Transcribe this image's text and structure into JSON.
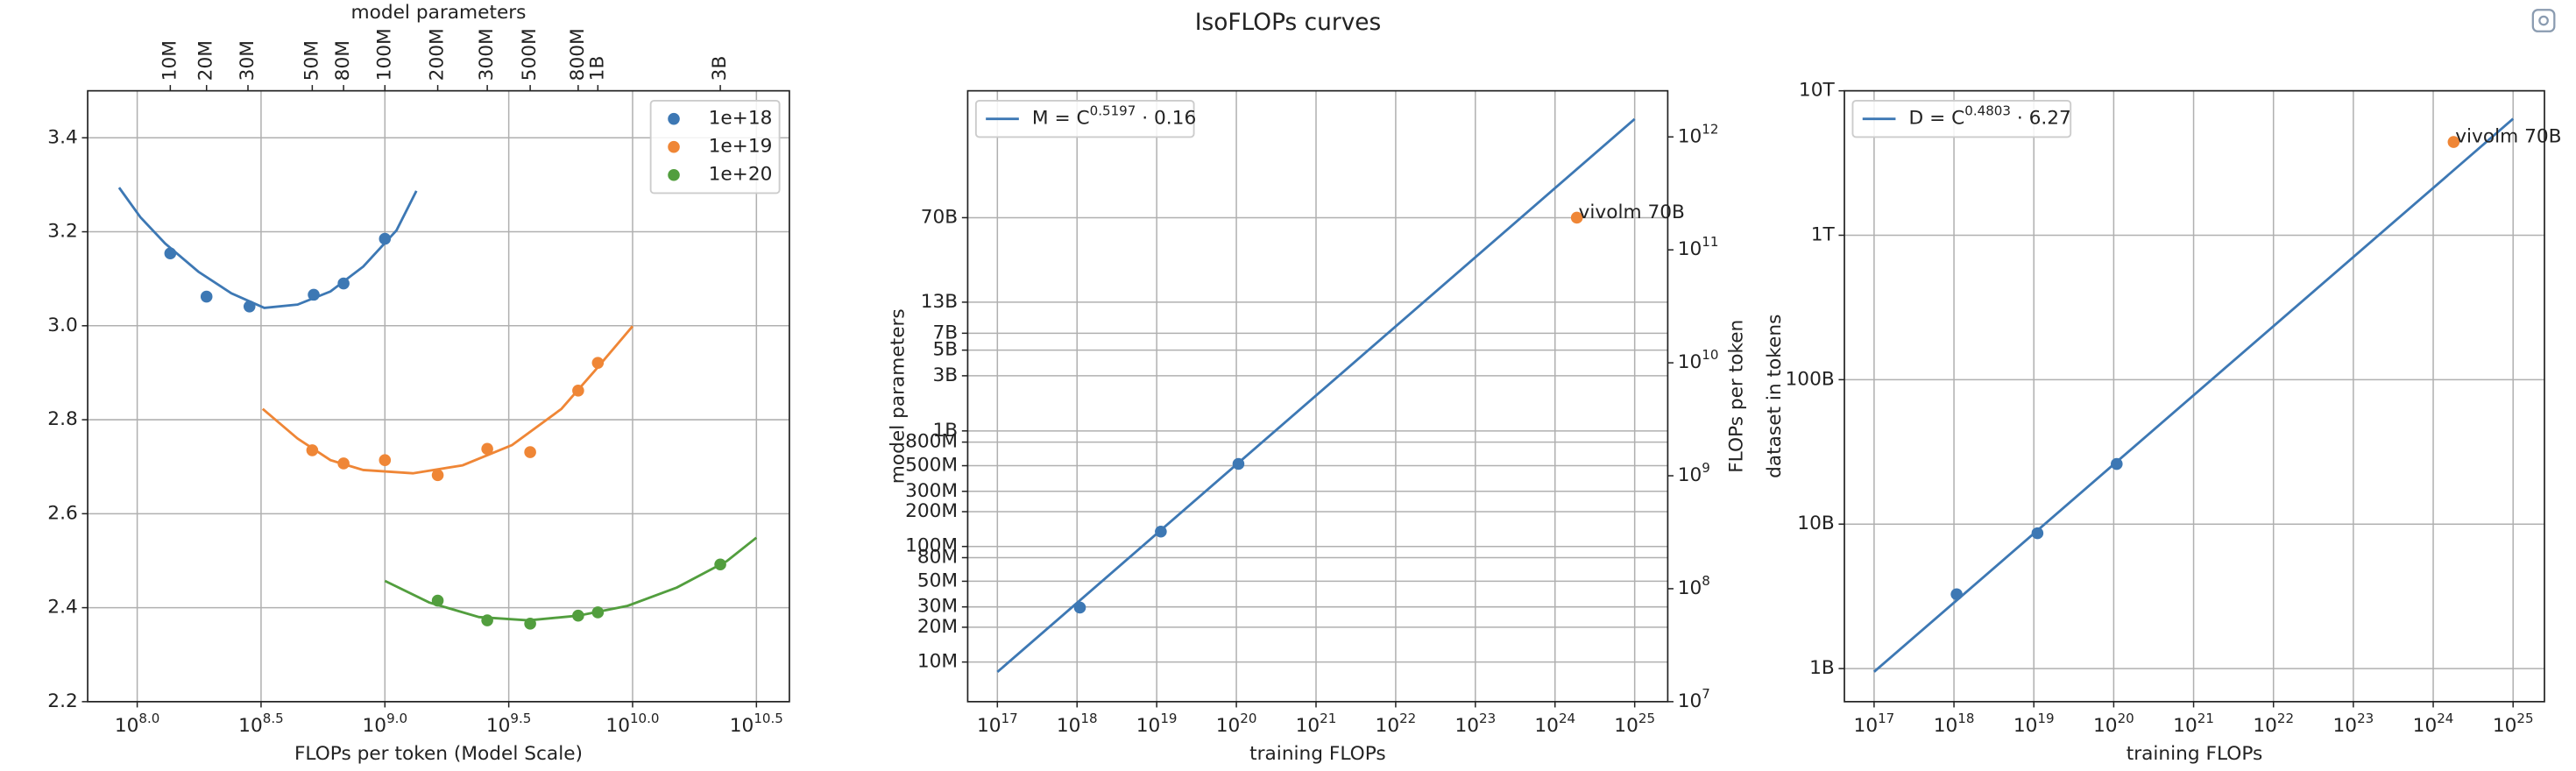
{
  "title": "IsoFLOPs curves",
  "chart_data": [
    {
      "type": "scatter",
      "xlabel": "FLOPs per token (Model Scale)",
      "ylabel": "Loss",
      "x2label": "model parameters",
      "xscale": "log",
      "grid": true,
      "legend": "upper right",
      "xlim": [
        63095734,
        42953642966
      ],
      "ylim": [
        2.2,
        3.5
      ],
      "xticks": [
        {
          "value": 100000000,
          "label": "10^8.0"
        },
        {
          "value": 316227766,
          "label": "10^8.5"
        },
        {
          "value": 1000000000,
          "label": "10^9.0"
        },
        {
          "value": 3162277660,
          "label": "10^9.5"
        },
        {
          "value": 10000000000,
          "label": "10^10.0"
        },
        {
          "value": 31622776602,
          "label": "10^10.5"
        }
      ],
      "yticks": [
        2.2,
        2.4,
        2.6,
        2.8,
        {
          "value": 3,
          "label": "3.0"
        },
        3.2,
        3.4
      ],
      "x2ticks": [
        {
          "value": 136000000,
          "label": "10M"
        },
        {
          "value": 190500000,
          "label": "20M"
        },
        {
          "value": 280000000,
          "label": "30M"
        },
        {
          "value": 509000000,
          "label": "50M"
        },
        {
          "value": 681000000,
          "label": "80M"
        },
        {
          "value": 1000000000,
          "label": "100M"
        },
        {
          "value": 1634000000,
          "label": "200M"
        },
        {
          "value": 2590000000,
          "label": "300M"
        },
        {
          "value": 3860000000,
          "label": "500M"
        },
        {
          "value": 6030000000,
          "label": "800M"
        },
        {
          "value": 7240000000,
          "label": "1B"
        },
        {
          "value": 22600000000,
          "label": "3B"
        }
      ],
      "series": [
        {
          "name": "1e+18",
          "color": "#3d78b4",
          "x": [
            136000000,
            190500000,
            284000000,
            516000000,
            681000000,
            1000000000
          ],
          "values": [
            3.154,
            3.062,
            3.041,
            3.066,
            3.09,
            3.185
          ],
          "fit_x": [
            84500000,
            103000000,
            129700000,
            176600000,
            240000000,
            326000000,
            444000000,
            603000000,
            818000000,
            1114000000,
            1340000000
          ],
          "fit_values": [
            3.294,
            3.231,
            3.175,
            3.115,
            3.069,
            3.038,
            3.045,
            3.073,
            3.126,
            3.203,
            3.287
          ]
        },
        {
          "name": "1e+19",
          "color": "#ef8636",
          "x": [
            509000000,
            681000000,
            1000000000,
            1634000000,
            2590000000,
            3860000000,
            6030000000,
            7240000000
          ],
          "values": [
            2.735,
            2.707,
            2.714,
            2.682,
            2.738,
            2.731,
            2.862,
            2.921
          ],
          "fit_x": [
            321000000,
            444000000,
            603000000,
            818000000,
            1297000000,
            2060000000,
            3260000000,
            5160000000,
            7030000000,
            10000000000
          ],
          "fit_values": [
            2.823,
            2.76,
            2.714,
            2.693,
            2.686,
            2.703,
            2.746,
            2.823,
            2.904,
            2.999
          ]
        },
        {
          "name": "1e+20",
          "color": "#529e3e",
          "x": [
            1634000000,
            2590000000,
            3860000000,
            6030000000,
            7240000000,
            22600000000
          ],
          "values": [
            2.415,
            2.373,
            2.366,
            2.383,
            2.39,
            2.492
          ],
          "fit_x": [
            1000000000,
            1510000000,
            2400000000,
            3800000000,
            6030000000,
            9550000000,
            15100000000,
            24000000000,
            31600000000
          ],
          "fit_values": [
            2.457,
            2.411,
            2.38,
            2.373,
            2.383,
            2.404,
            2.443,
            2.499,
            2.549
          ]
        }
      ]
    },
    {
      "type": "line",
      "xlabel": "training FLOPs",
      "ylabel": "model parameters",
      "y2label": "FLOPs per token",
      "xscale": "log",
      "yscale": "log",
      "grid": true,
      "legend": "upper left",
      "xlim": [
        42400000000000000,
        2.6e+25
      ],
      "ylim": [
        4540000,
        877000000000
      ],
      "y2lim": [
        10000000,
        2560000000000
      ],
      "xticks": [
        {
          "value": 1e+17,
          "label": "10^17"
        },
        {
          "value": 1e+18,
          "label": "10^18"
        },
        {
          "value": 1e+19,
          "label": "10^19"
        },
        {
          "value": 1e+20,
          "label": "10^20"
        },
        {
          "value": 1e+21,
          "label": "10^21"
        },
        {
          "value": 1e+22,
          "label": "10^22"
        },
        {
          "value": 1e+23,
          "label": "10^23"
        },
        {
          "value": 1e+24,
          "label": "10^24"
        },
        {
          "value": 1e+25,
          "label": "10^25"
        }
      ],
      "yticks": [
        {
          "value": 10000000,
          "label": "10M"
        },
        {
          "value": 20000000,
          "label": "20M"
        },
        {
          "value": 30000000,
          "label": "30M"
        },
        {
          "value": 50000000,
          "label": "50M"
        },
        {
          "value": 80000000,
          "label": "80M"
        },
        {
          "value": 100000000,
          "label": "100M"
        },
        {
          "value": 200000000,
          "label": "200M"
        },
        {
          "value": 300000000,
          "label": "300M"
        },
        {
          "value": 500000000,
          "label": "500M"
        },
        {
          "value": 800000000,
          "label": "800M"
        },
        {
          "value": 1000000000,
          "label": "1B"
        },
        {
          "value": 3000000000,
          "label": "3B"
        },
        {
          "value": 5000000000,
          "label": "5B"
        },
        {
          "value": 7000000000,
          "label": "7B"
        },
        {
          "value": 13000000000,
          "label": "13B"
        },
        {
          "value": 70000000000,
          "label": "70B"
        }
      ],
      "y2ticks": [
        {
          "value": 10000000,
          "label": "10^7"
        },
        {
          "value": 100000000,
          "label": "10^8"
        },
        {
          "value": 1000000000,
          "label": "10^9"
        },
        {
          "value": 10000000000,
          "label": "10^10"
        },
        {
          "value": 100000000000,
          "label": "10^11"
        },
        {
          "value": 1000000000000,
          "label": "10^12"
        }
      ],
      "series": [
        {
          "name": "M = C^0.5197 · 0.16",
          "color": "#3d78b4",
          "x": [
            1e+17,
            1e+25
          ],
          "values": [
            8200000,
            500000000000
          ]
        }
      ],
      "points": {
        "color": "#3d78b4",
        "x": [
          1086000000000000000,
          11270000000000000000,
          106200000000000000000
        ],
        "values": [
          29600000,
          134500000,
          518000000
        ]
      },
      "annotation": {
        "text": "vivolm 70B",
        "color": "#ef8636",
        "x": 1.88e+24,
        "y": 70000000000
      }
    },
    {
      "type": "line",
      "xlabel": "training FLOPs",
      "ylabel": "dataset in tokens",
      "xscale": "log",
      "yscale": "log",
      "grid": true,
      "legend": "upper left",
      "xlim": [
        42500000000000000,
        2.47e+25
      ],
      "ylim": [
        590000000,
        10000000000000
      ],
      "xticks": [
        {
          "value": 1e+17,
          "label": "10^17"
        },
        {
          "value": 1e+18,
          "label": "10^18"
        },
        {
          "value": 1e+19,
          "label": "10^19"
        },
        {
          "value": 1e+20,
          "label": "10^20"
        },
        {
          "value": 1e+21,
          "label": "10^21"
        },
        {
          "value": 1e+22,
          "label": "10^22"
        },
        {
          "value": 1e+23,
          "label": "10^23"
        },
        {
          "value": 1e+24,
          "label": "10^24"
        },
        {
          "value": 1e+25,
          "label": "10^25"
        }
      ],
      "yticks": [
        {
          "value": 1000000000,
          "label": "1B"
        },
        {
          "value": 10000000000,
          "label": "10B"
        },
        {
          "value": 100000000000,
          "label": "100B"
        },
        {
          "value": 1000000000000,
          "label": "1T"
        },
        {
          "value": 10000000000000,
          "label": "10T"
        }
      ],
      "series": [
        {
          "name": "D = C^0.4803 · 6.27",
          "color": "#3d78b4",
          "x": [
            1e+17,
            1e+25
          ],
          "values": [
            950000000,
            6400000000000
          ]
        }
      ],
      "points": {
        "color": "#3d78b4",
        "x": [
          1080000000000000000,
          11100000000000000000,
          109000000000000000000
        ],
        "values": [
          3270000000,
          8650000000,
          26100000000
        ]
      },
      "annotation": {
        "text": "vivolm 70B",
        "color": "#ef8636",
        "x": 1.8e+24,
        "y": 4420000000000
      }
    }
  ]
}
